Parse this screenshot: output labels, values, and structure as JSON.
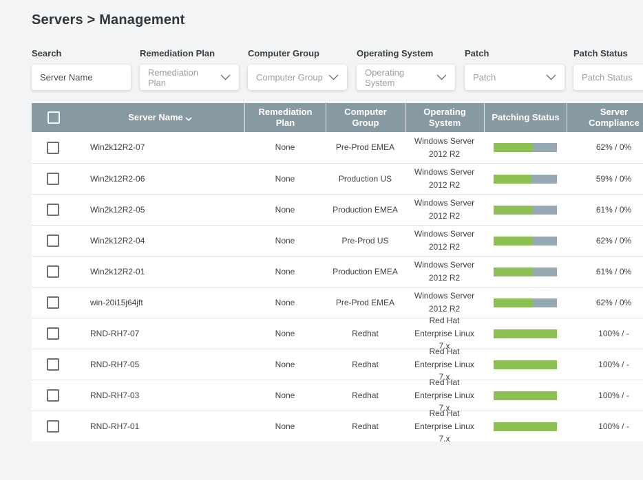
{
  "title": "Servers > Management",
  "colors": {
    "header_bg": "#8799a1",
    "progress_green": "#8cc152",
    "progress_gray": "#96a9b2",
    "page_bg": "#f2f4f5"
  },
  "filters": [
    {
      "label": "Search",
      "value": "Server Name",
      "type": "input"
    },
    {
      "label": "Remediation Plan",
      "value": "Remediation Plan",
      "type": "select"
    },
    {
      "label": "Computer Group",
      "value": "Computer Group",
      "type": "select"
    },
    {
      "label": "Operating System",
      "value": "Operating System",
      "type": "select"
    },
    {
      "label": "Patch",
      "value": "Patch",
      "type": "select"
    },
    {
      "label": "Patch Status",
      "value": "Patch Status",
      "type": "select"
    }
  ],
  "table": {
    "columns": [
      "",
      "Server Name",
      "Remediation Plan",
      "Computer Group",
      "Operating System",
      "Patching Status",
      "Server Compliance"
    ],
    "sorted_column": "Server Name",
    "sort_direction": "desc",
    "rows": [
      {
        "server": "Win2k12R2-07",
        "plan": "None",
        "group": "Pre-Prod EMEA",
        "os": "Windows Server 2012 R2",
        "patch_pct": 62,
        "compliance": "62% / 0%"
      },
      {
        "server": "Win2k12R2-06",
        "plan": "None",
        "group": "Production US",
        "os": "Windows Server 2012 R2",
        "patch_pct": 59,
        "compliance": "59% / 0%"
      },
      {
        "server": "Win2k12R2-05",
        "plan": "None",
        "group": "Production EMEA",
        "os": "Windows Server 2012 R2",
        "patch_pct": 61,
        "compliance": "61% / 0%"
      },
      {
        "server": "Win2k12R2-04",
        "plan": "None",
        "group": "Pre-Prod US",
        "os": "Windows Server 2012 R2",
        "patch_pct": 62,
        "compliance": "62% / 0%"
      },
      {
        "server": "Win2k12R2-01",
        "plan": "None",
        "group": "Production EMEA",
        "os": "Windows Server 2012 R2",
        "patch_pct": 61,
        "compliance": "61% / 0%"
      },
      {
        "server": "win-20i15j64jft",
        "plan": "None",
        "group": "Pre-Prod EMEA",
        "os": "Windows Server 2012 R2",
        "patch_pct": 62,
        "compliance": "62% / 0%"
      },
      {
        "server": "RND-RH7-07",
        "plan": "None",
        "group": "Redhat",
        "os": "Red Hat Enterprise Linux 7.x",
        "patch_pct": 100,
        "compliance": "100% / -"
      },
      {
        "server": "RND-RH7-05",
        "plan": "None",
        "group": "Redhat",
        "os": "Red Hat Enterprise Linux 7.x",
        "patch_pct": 100,
        "compliance": "100% / -"
      },
      {
        "server": "RND-RH7-03",
        "plan": "None",
        "group": "Redhat",
        "os": "Red Hat Enterprise Linux 7.x",
        "patch_pct": 100,
        "compliance": "100% / -"
      },
      {
        "server": "RND-RH7-01",
        "plan": "None",
        "group": "Redhat",
        "os": "Red Hat Enterprise Linux 7.x",
        "patch_pct": 100,
        "compliance": "100% / -"
      }
    ]
  }
}
